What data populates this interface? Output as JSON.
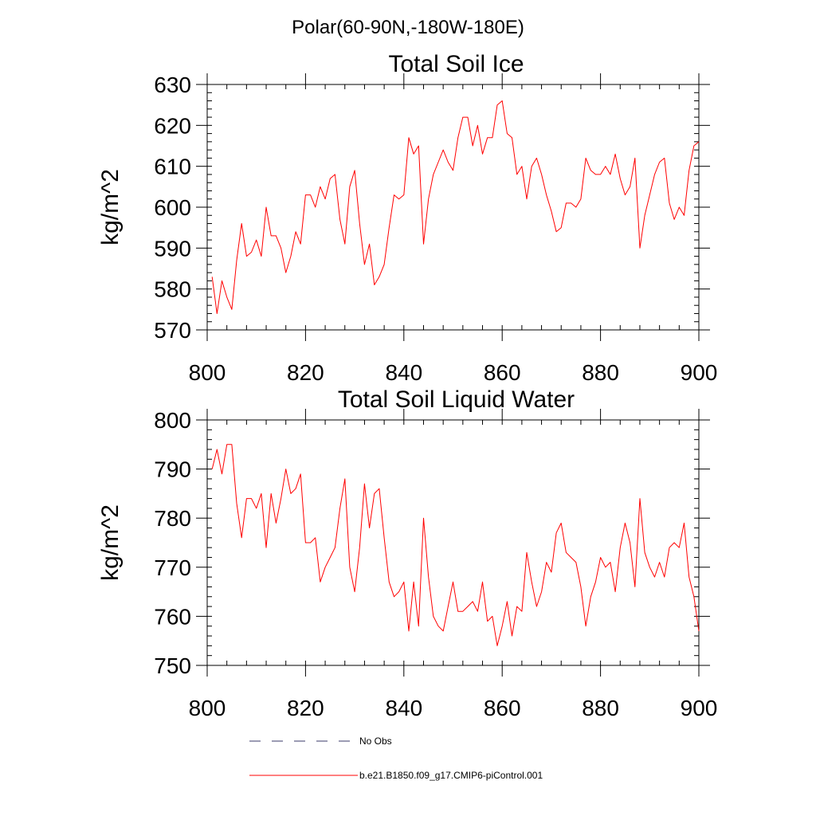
{
  "figure": {
    "title": "Polar(60-90N,-180W-180E)"
  },
  "legend": {
    "items": [
      {
        "label": "No Obs",
        "style": "dashed",
        "color": "#3a3a6a"
      },
      {
        "label": "b.e21.B1850.f09_g17.CMIP6-piControl.001",
        "style": "solid",
        "color": "#ff0000"
      }
    ]
  },
  "chart_data": [
    {
      "type": "line",
      "title": "Total Soil Ice",
      "xlabel": "",
      "ylabel": "kg/m^2",
      "xlim": [
        800,
        900
      ],
      "ylim": [
        570,
        630
      ],
      "xticks": [
        800,
        820,
        840,
        860,
        880,
        900
      ],
      "yticks": [
        570,
        580,
        590,
        600,
        610,
        620,
        630
      ],
      "series": [
        {
          "color": "#ff0000",
          "x": [
            801,
            802,
            803,
            804,
            805,
            806,
            807,
            808,
            809,
            810,
            811,
            812,
            813,
            814,
            815,
            816,
            817,
            818,
            819,
            820,
            821,
            822,
            823,
            824,
            825,
            826,
            827,
            828,
            829,
            830,
            831,
            832,
            833,
            834,
            835,
            836,
            837,
            838,
            839,
            840,
            841,
            842,
            843,
            844,
            845,
            846,
            847,
            848,
            849,
            850,
            851,
            852,
            853,
            854,
            855,
            856,
            857,
            858,
            859,
            860,
            861,
            862,
            863,
            864,
            865,
            866,
            867,
            868,
            869,
            870,
            871,
            872,
            873,
            874,
            875,
            876,
            877,
            878,
            879,
            880,
            881,
            882,
            883,
            884,
            885,
            886,
            887,
            888,
            889,
            890,
            891,
            892,
            893,
            894,
            895,
            896,
            897,
            898,
            899,
            900
          ],
          "y": [
            583,
            574,
            582,
            578,
            575,
            587,
            596,
            588,
            589,
            592,
            588,
            600,
            593,
            593,
            590,
            584,
            588,
            594,
            591,
            603,
            603,
            600,
            605,
            602,
            607,
            608,
            597,
            591,
            605,
            609,
            596,
            586,
            591,
            581,
            583,
            586,
            595,
            603,
            602,
            603,
            617,
            613,
            615,
            591,
            602,
            608,
            611,
            614,
            611,
            609,
            617,
            622,
            622,
            615,
            620,
            613,
            617,
            617,
            625,
            626,
            618,
            617,
            608,
            610,
            602,
            610,
            612,
            608,
            603,
            599,
            594,
            595,
            601,
            601,
            600,
            602,
            612,
            609,
            608,
            608,
            610,
            608,
            613,
            607,
            603,
            605,
            612,
            590,
            598,
            603,
            608,
            611,
            612,
            601,
            597,
            600,
            598,
            609,
            615,
            616
          ]
        }
      ]
    },
    {
      "type": "line",
      "title": "Total Soil Liquid Water",
      "xlabel": "",
      "ylabel": "kg/m^2",
      "xlim": [
        800,
        900
      ],
      "ylim": [
        750,
        800
      ],
      "xticks": [
        800,
        820,
        840,
        860,
        880,
        900
      ],
      "yticks": [
        750,
        760,
        770,
        780,
        790,
        800
      ],
      "series": [
        {
          "color": "#ff0000",
          "x": [
            801,
            802,
            803,
            804,
            805,
            806,
            807,
            808,
            809,
            810,
            811,
            812,
            813,
            814,
            815,
            816,
            817,
            818,
            819,
            820,
            821,
            822,
            823,
            824,
            825,
            826,
            827,
            828,
            829,
            830,
            831,
            832,
            833,
            834,
            835,
            836,
            837,
            838,
            839,
            840,
            841,
            842,
            843,
            844,
            845,
            846,
            847,
            848,
            849,
            850,
            851,
            852,
            853,
            854,
            855,
            856,
            857,
            858,
            859,
            860,
            861,
            862,
            863,
            864,
            865,
            866,
            867,
            868,
            869,
            870,
            871,
            872,
            873,
            874,
            875,
            876,
            877,
            878,
            879,
            880,
            881,
            882,
            883,
            884,
            885,
            886,
            887,
            888,
            889,
            890,
            891,
            892,
            893,
            894,
            895,
            896,
            897,
            898,
            899,
            900
          ],
          "y": [
            790,
            794,
            789,
            795,
            795,
            783,
            776,
            784,
            784,
            782,
            785,
            774,
            785,
            779,
            784,
            790,
            785,
            786,
            789,
            775,
            775,
            776,
            767,
            770,
            772,
            774,
            782,
            788,
            770,
            765,
            774,
            787,
            778,
            785,
            786,
            776,
            767,
            764,
            765,
            767,
            757,
            767,
            758,
            780,
            768,
            760,
            758,
            757,
            762,
            767,
            761,
            761,
            762,
            763,
            761,
            767,
            759,
            760,
            754,
            758,
            763,
            756,
            762,
            761,
            773,
            767,
            762,
            765,
            771,
            769,
            777,
            779,
            773,
            772,
            771,
            766,
            758,
            764,
            767,
            772,
            770,
            771,
            765,
            774,
            779,
            775,
            766,
            784,
            773,
            770,
            768,
            771,
            768,
            774,
            775,
            774,
            779,
            768,
            764,
            757
          ]
        }
      ]
    }
  ]
}
